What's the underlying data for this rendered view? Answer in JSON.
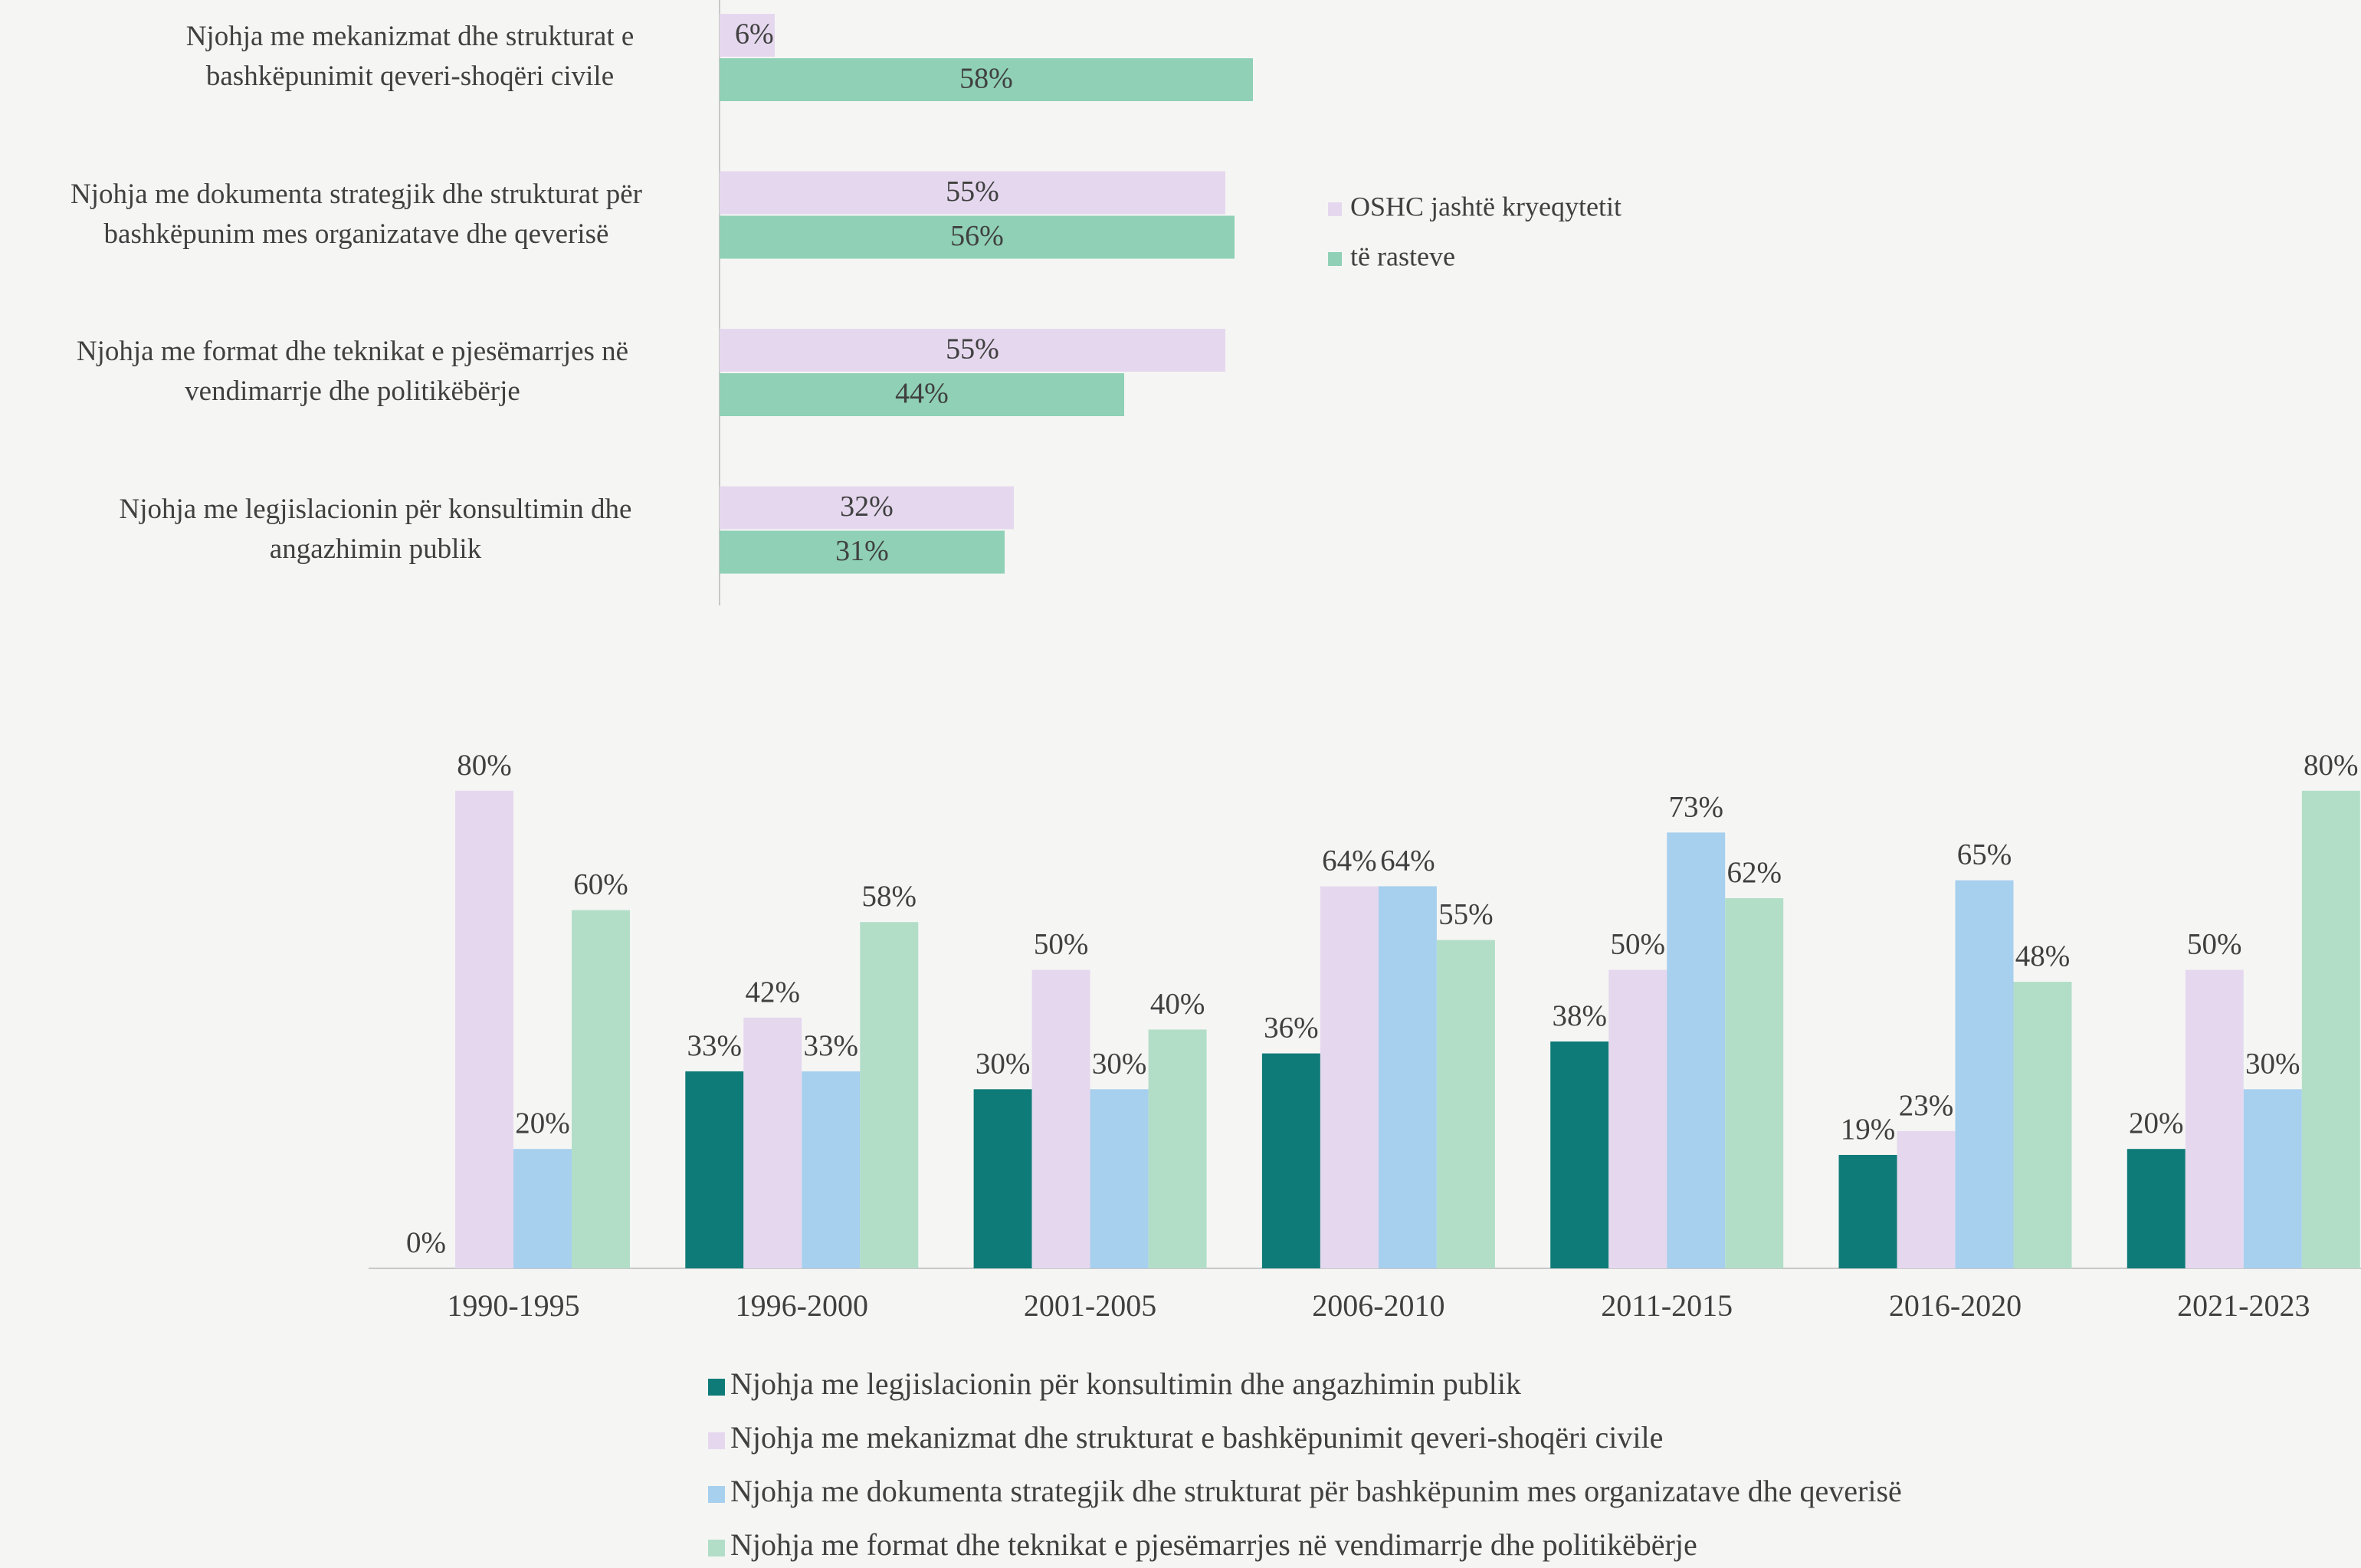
{
  "chart_data": [
    {
      "type": "bar",
      "horizontal": true,
      "categories": [
        "Njohja me mekanizmat dhe strukturat e bashkëpunimit qeveri-shoqëri civile",
        "Njohja me dokumenta strategjik dhe strukturat për bashkëpunim mes organizatave dhe qeverisë",
        "Njohja me format dhe teknikat e pjesëmarrjes në vendimarrje dhe politikëbërje",
        "Njohja me legjislacionin për konsultimin dhe angazhimin publik"
      ],
      "series": [
        {
          "name": "OSHC jashtë kryeqytetit",
          "color": "#e5d8ee",
          "values": [
            6,
            55,
            55,
            32
          ],
          "value_labels": [
            "6%",
            "55%",
            "55%",
            "32%"
          ]
        },
        {
          "name": "të rasteve",
          "color": "#8fd0b6",
          "values": [
            58,
            56,
            44,
            31
          ],
          "value_labels": [
            "58%",
            "56%",
            "44%",
            "31%"
          ]
        }
      ],
      "legend": "right"
    },
    {
      "type": "bar",
      "categories": [
        "1990-1995",
        "1996-2000",
        "2001-2005",
        "2006-2010",
        "2011-2015",
        "2016-2020",
        "2021-2023"
      ],
      "series": [
        {
          "name": "Njohja me legjislacionin për konsultimin dhe angazhimin publik",
          "color": "#0f7b78",
          "values": [
            0,
            33,
            30,
            36,
            38,
            19,
            20
          ],
          "value_labels": [
            "0%",
            "33%",
            "30%",
            "36%",
            "38%",
            "19%",
            "20%"
          ]
        },
        {
          "name": "Njohja me mekanizmat dhe strukturat e bashkëpunimit qeveri-shoqëri civile",
          "color": "#e5d8ee",
          "values": [
            80,
            42,
            50,
            64,
            50,
            23,
            50
          ],
          "value_labels": [
            "80%",
            "42%",
            "50%",
            "64%",
            "50%",
            "23%",
            "50%"
          ]
        },
        {
          "name": "Njohja me dokumenta strategjik dhe strukturat për bashkëpunim mes organizatave dhe qeverisë",
          "color": "#a7cfee",
          "values": [
            20,
            33,
            30,
            64,
            73,
            65,
            30
          ],
          "value_labels": [
            "20%",
            "33%",
            "30%",
            "64%",
            "73%",
            "65%",
            "30%"
          ]
        },
        {
          "name": "Njohja me format dhe teknikat e pjesëmarrjes në vendimarrje dhe politikëbërje",
          "color": "#b2dec8",
          "values": [
            60,
            58,
            40,
            55,
            62,
            48,
            80
          ],
          "value_labels": [
            "60%",
            "58%",
            "40%",
            "55%",
            "62%",
            "48%",
            "80%"
          ]
        }
      ],
      "legend": "bottom"
    }
  ]
}
